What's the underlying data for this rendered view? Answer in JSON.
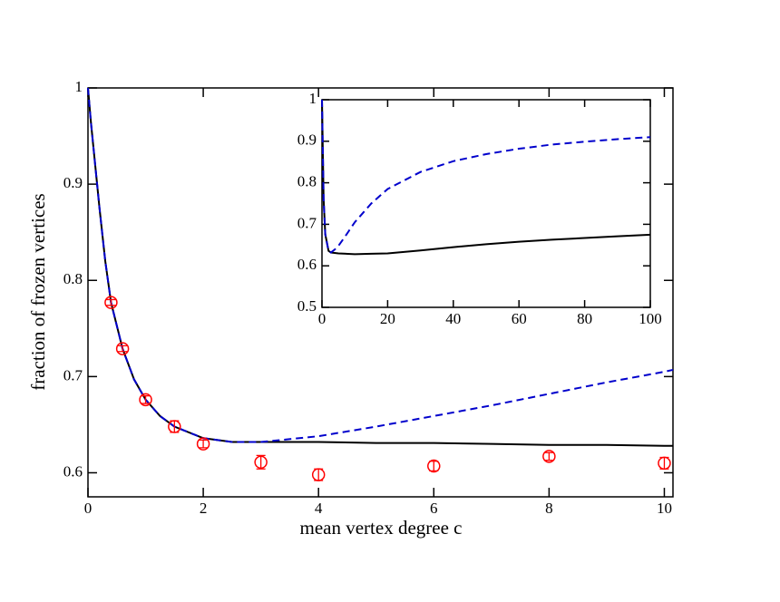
{
  "chart_data": [
    {
      "type": "line",
      "x_label": "mean vertex degree c",
      "y_label": "fraction of frozen vertices",
      "xlim": [
        0,
        10.15
      ],
      "ylim": [
        0.575,
        1.0
      ],
      "xticks": [
        0,
        2,
        4,
        6,
        8,
        10
      ],
      "yticks": [
        0.6,
        0.7,
        0.8,
        0.9,
        1
      ],
      "series": [
        {
          "type": "line",
          "dash": false,
          "color": "#000000",
          "x": [
            0,
            0.05,
            0.1,
            0.2,
            0.3,
            0.4,
            0.6,
            0.8,
            1,
            1.25,
            1.5,
            2,
            2.5,
            2.72,
            3,
            4,
            5,
            6,
            7,
            8,
            9,
            10,
            10.15
          ],
          "values": [
            1.0,
            0.965,
            0.935,
            0.875,
            0.82,
            0.777,
            0.729,
            0.697,
            0.676,
            0.659,
            0.648,
            0.636,
            0.632,
            0.632,
            0.632,
            0.632,
            0.631,
            0.631,
            0.63,
            0.629,
            0.629,
            0.628,
            0.628
          ]
        },
        {
          "type": "line",
          "dash": true,
          "color": "#0000cc",
          "x": [
            0,
            0.05,
            0.1,
            0.2,
            0.3,
            0.4,
            0.6,
            0.8,
            1,
            1.25,
            1.5,
            2,
            2.5,
            2.72,
            3,
            4,
            5,
            6,
            7,
            8,
            9,
            10,
            10.15
          ],
          "values": [
            1.0,
            0.965,
            0.935,
            0.875,
            0.82,
            0.777,
            0.729,
            0.697,
            0.676,
            0.659,
            0.648,
            0.636,
            0.632,
            0.632,
            0.632,
            0.638,
            0.648,
            0.659,
            0.67,
            0.682,
            0.694,
            0.705,
            0.707
          ]
        },
        {
          "type": "scatter",
          "color": "#ff0000",
          "x": [
            0.4,
            0.6,
            1,
            1.5,
            2,
            3,
            4,
            6,
            8,
            10
          ],
          "values": [
            0.777,
            0.729,
            0.676,
            0.648,
            0.63,
            0.611,
            0.598,
            0.607,
            0.617,
            0.61
          ],
          "errors": [
            0.003,
            0.003,
            0.004,
            0.006,
            0.004,
            0.007,
            0.006,
            0.005,
            0.004,
            0.006
          ]
        }
      ]
    },
    {
      "type": "line",
      "xlim": [
        0,
        100
      ],
      "ylim": [
        0.5,
        1.0
      ],
      "xticks": [
        0,
        20,
        40,
        60,
        80,
        100
      ],
      "yticks": [
        0.5,
        0.6,
        0.7,
        0.8,
        0.9,
        1
      ],
      "series": [
        {
          "type": "line",
          "dash": false,
          "color": "#000000",
          "x": [
            0,
            0.5,
            1,
            2,
            2.72,
            5,
            10,
            15,
            20,
            30,
            40,
            50,
            60,
            70,
            80,
            90,
            100
          ],
          "values": [
            1.0,
            0.76,
            0.676,
            0.636,
            0.632,
            0.63,
            0.628,
            0.629,
            0.63,
            0.637,
            0.645,
            0.652,
            0.658,
            0.663,
            0.667,
            0.671,
            0.675
          ]
        },
        {
          "type": "line",
          "dash": true,
          "color": "#0000cc",
          "x": [
            0,
            0.5,
            1,
            2,
            2.72,
            4,
            5,
            7,
            10,
            15,
            20,
            30,
            40,
            50,
            60,
            70,
            80,
            90,
            100
          ],
          "values": [
            1.0,
            0.76,
            0.676,
            0.636,
            0.632,
            0.64,
            0.648,
            0.67,
            0.705,
            0.75,
            0.785,
            0.826,
            0.852,
            0.869,
            0.882,
            0.892,
            0.899,
            0.905,
            0.91
          ]
        }
      ]
    }
  ]
}
